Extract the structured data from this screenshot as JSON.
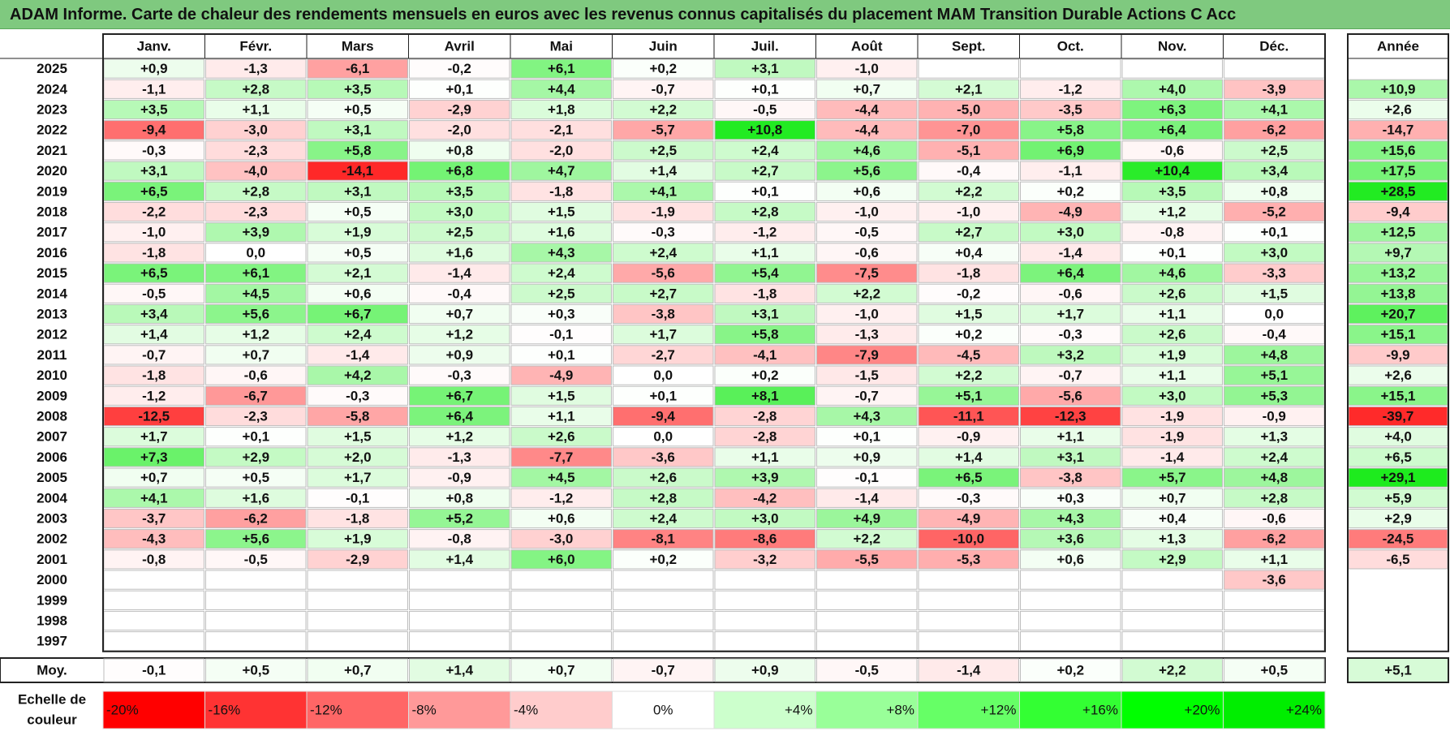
{
  "title": "ADAM Informe. Carte de chaleur des rendements mensuels en euros avec les revenus connus capitalisés du placement MAM Transition Durable Actions C Acc",
  "chart_data": {
    "type": "heatmap",
    "columns": [
      "Janv.",
      "Févr.",
      "Mars",
      "Avril",
      "Mai",
      "Juin",
      "Juil.",
      "Août",
      "Sept.",
      "Oct.",
      "Nov.",
      "Déc."
    ],
    "year_column": "Année",
    "rows": [
      {
        "year": "2025",
        "months": [
          "+0,9",
          "-1,3",
          "-6,1",
          "-0,2",
          "+6,1",
          "+0,2",
          "+3,1",
          "-1,0",
          "",
          "",
          "",
          ""
        ],
        "annual": ""
      },
      {
        "year": "2024",
        "months": [
          "-1,1",
          "+2,8",
          "+3,5",
          "+0,1",
          "+4,4",
          "-0,7",
          "+0,1",
          "+0,7",
          "+2,1",
          "-1,2",
          "+4,0",
          "-3,9"
        ],
        "annual": "+10,9"
      },
      {
        "year": "2023",
        "months": [
          "+3,5",
          "+1,1",
          "+0,5",
          "-2,9",
          "+1,8",
          "+2,2",
          "-0,5",
          "-4,4",
          "-5,0",
          "-3,5",
          "+6,3",
          "+4,1"
        ],
        "annual": "+2,6"
      },
      {
        "year": "2022",
        "months": [
          "-9,4",
          "-3,0",
          "+3,1",
          "-2,0",
          "-2,1",
          "-5,7",
          "+10,8",
          "-4,4",
          "-7,0",
          "+5,8",
          "+6,4",
          "-6,2"
        ],
        "annual": "-14,7"
      },
      {
        "year": "2021",
        "months": [
          "-0,3",
          "-2,3",
          "+5,8",
          "+0,8",
          "-2,0",
          "+2,5",
          "+2,4",
          "+4,6",
          "-5,1",
          "+6,9",
          "-0,6",
          "+2,5"
        ],
        "annual": "+15,6"
      },
      {
        "year": "2020",
        "months": [
          "+3,1",
          "-4,0",
          "-14,1",
          "+6,8",
          "+4,7",
          "+1,4",
          "+2,7",
          "+5,6",
          "-0,4",
          "-1,1",
          "+10,4",
          "+3,4"
        ],
        "annual": "+17,5"
      },
      {
        "year": "2019",
        "months": [
          "+6,5",
          "+2,8",
          "+3,1",
          "+3,5",
          "-1,8",
          "+4,1",
          "+0,1",
          "+0,6",
          "+2,2",
          "+0,2",
          "+3,5",
          "+0,8"
        ],
        "annual": "+28,5"
      },
      {
        "year": "2018",
        "months": [
          "-2,2",
          "-2,3",
          "+0,5",
          "+3,0",
          "+1,5",
          "-1,9",
          "+2,8",
          "-1,0",
          "-1,0",
          "-4,9",
          "+1,2",
          "-5,2"
        ],
        "annual": "-9,4"
      },
      {
        "year": "2017",
        "months": [
          "-1,0",
          "+3,9",
          "+1,9",
          "+2,5",
          "+1,6",
          "-0,3",
          "-1,2",
          "-0,5",
          "+2,7",
          "+3,0",
          "-0,8",
          "+0,1"
        ],
        "annual": "+12,5"
      },
      {
        "year": "2016",
        "months": [
          "-1,8",
          "0,0",
          "+0,5",
          "+1,6",
          "+4,3",
          "+2,4",
          "+1,1",
          "-0,6",
          "+0,4",
          "-1,4",
          "+0,1",
          "+3,0"
        ],
        "annual": "+9,7"
      },
      {
        "year": "2015",
        "months": [
          "+6,5",
          "+6,1",
          "+2,1",
          "-1,4",
          "+2,4",
          "-5,6",
          "+5,4",
          "-7,5",
          "-1,8",
          "+6,4",
          "+4,6",
          "-3,3"
        ],
        "annual": "+13,2"
      },
      {
        "year": "2014",
        "months": [
          "-0,5",
          "+4,5",
          "+0,6",
          "-0,4",
          "+2,5",
          "+2,7",
          "-1,8",
          "+2,2",
          "-0,2",
          "-0,6",
          "+2,6",
          "+1,5"
        ],
        "annual": "+13,8"
      },
      {
        "year": "2013",
        "months": [
          "+3,4",
          "+5,6",
          "+6,7",
          "+0,7",
          "+0,3",
          "-3,8",
          "+3,1",
          "-1,0",
          "+1,5",
          "+1,7",
          "+1,1",
          "0,0"
        ],
        "annual": "+20,7"
      },
      {
        "year": "2012",
        "months": [
          "+1,4",
          "+1,2",
          "+2,4",
          "+1,2",
          "-0,1",
          "+1,7",
          "+5,8",
          "-1,3",
          "+0,2",
          "-0,3",
          "+2,6",
          "-0,4"
        ],
        "annual": "+15,1"
      },
      {
        "year": "2011",
        "months": [
          "-0,7",
          "+0,7",
          "-1,4",
          "+0,9",
          "+0,1",
          "-2,7",
          "-4,1",
          "-7,9",
          "-4,5",
          "+3,2",
          "+1,9",
          "+4,8"
        ],
        "annual": "-9,9"
      },
      {
        "year": "2010",
        "months": [
          "-1,8",
          "-0,6",
          "+4,2",
          "-0,3",
          "-4,9",
          "0,0",
          "+0,2",
          "-1,5",
          "+2,2",
          "-0,7",
          "+1,1",
          "+5,1"
        ],
        "annual": "+2,6"
      },
      {
        "year": "2009",
        "months": [
          "-1,2",
          "-6,7",
          "-0,3",
          "+6,7",
          "+1,5",
          "+0,1",
          "+8,1",
          "-0,7",
          "+5,1",
          "-5,6",
          "+3,0",
          "+5,3"
        ],
        "annual": "+15,1"
      },
      {
        "year": "2008",
        "months": [
          "-12,5",
          "-2,3",
          "-5,8",
          "+6,4",
          "+1,1",
          "-9,4",
          "-2,8",
          "+4,3",
          "-11,1",
          "-12,3",
          "-1,9",
          "-0,9"
        ],
        "annual": "-39,7"
      },
      {
        "year": "2007",
        "months": [
          "+1,7",
          "+0,1",
          "+1,5",
          "+1,2",
          "+2,6",
          "0,0",
          "-2,8",
          "+0,1",
          "-0,9",
          "+1,1",
          "-1,9",
          "+1,3"
        ],
        "annual": "+4,0"
      },
      {
        "year": "2006",
        "months": [
          "+7,3",
          "+2,9",
          "+2,0",
          "-1,3",
          "-7,7",
          "-3,6",
          "+1,1",
          "+0,9",
          "+1,4",
          "+3,1",
          "-1,4",
          "+2,4"
        ],
        "annual": "+6,5"
      },
      {
        "year": "2005",
        "months": [
          "+0,7",
          "+0,5",
          "+1,7",
          "-0,9",
          "+4,5",
          "+2,6",
          "+3,9",
          "-0,1",
          "+6,5",
          "-3,8",
          "+5,7",
          "+4,8"
        ],
        "annual": "+29,1"
      },
      {
        "year": "2004",
        "months": [
          "+4,1",
          "+1,6",
          "-0,1",
          "+0,8",
          "-1,2",
          "+2,8",
          "-4,2",
          "-1,4",
          "-0,3",
          "+0,3",
          "+0,7",
          "+2,8"
        ],
        "annual": "+5,9"
      },
      {
        "year": "2003",
        "months": [
          "-3,7",
          "-6,2",
          "-1,8",
          "+5,2",
          "+0,6",
          "+2,4",
          "+3,0",
          "+4,9",
          "-4,9",
          "+4,3",
          "+0,4",
          "-0,6"
        ],
        "annual": "+2,9"
      },
      {
        "year": "2002",
        "months": [
          "-4,3",
          "+5,6",
          "+1,9",
          "-0,8",
          "-3,0",
          "-8,1",
          "-8,6",
          "+2,2",
          "-10,0",
          "+3,6",
          "+1,3",
          "-6,2"
        ],
        "annual": "-24,5"
      },
      {
        "year": "2001",
        "months": [
          "-0,8",
          "-0,5",
          "-2,9",
          "+1,4",
          "+6,0",
          "+0,2",
          "-3,2",
          "-5,5",
          "-5,3",
          "+0,6",
          "+2,9",
          "+1,1"
        ],
        "annual": "-6,5"
      },
      {
        "year": "2000",
        "months": [
          "",
          "",
          "",
          "",
          "",
          "",
          "",
          "",
          "",
          "",
          "",
          "-3,6"
        ],
        "annual": ""
      },
      {
        "year": "1999",
        "months": [
          "",
          "",
          "",
          "",
          "",
          "",
          "",
          "",
          "",
          "",
          "",
          ""
        ],
        "annual": ""
      },
      {
        "year": "1998",
        "months": [
          "",
          "",
          "",
          "",
          "",
          "",
          "",
          "",
          "",
          "",
          "",
          ""
        ],
        "annual": ""
      },
      {
        "year": "1997",
        "months": [
          "",
          "",
          "",
          "",
          "",
          "",
          "",
          "",
          "",
          "",
          "",
          ""
        ],
        "annual": ""
      }
    ],
    "average": {
      "label": "Moy.",
      "months": [
        "-0,1",
        "+0,5",
        "+0,7",
        "+1,4",
        "+0,7",
        "-0,7",
        "+0,9",
        "-0,5",
        "-1,4",
        "+0,2",
        "+2,2",
        "+0,5"
      ],
      "annual": "+5,1"
    },
    "color_scale": {
      "label": "Echelle de couleur",
      "stops": [
        {
          "label": "-20%",
          "value": -20,
          "color": "#ff0000"
        },
        {
          "label": "-16%",
          "value": -16,
          "color": "#ff3333"
        },
        {
          "label": "-12%",
          "value": -12,
          "color": "#ff6666"
        },
        {
          "label": "-8%",
          "value": -8,
          "color": "#ff9999"
        },
        {
          "label": "-4%",
          "value": -4,
          "color": "#ffcccc"
        },
        {
          "label": "0%",
          "value": 0,
          "color": "#ffffff"
        },
        {
          "label": "+4%",
          "value": 4,
          "color": "#ccffcc"
        },
        {
          "label": "+8%",
          "value": 8,
          "color": "#99ff99"
        },
        {
          "label": "+12%",
          "value": 12,
          "color": "#66ff66"
        },
        {
          "label": "+16%",
          "value": 16,
          "color": "#33ff33"
        },
        {
          "label": "+20%",
          "value": 20,
          "color": "#00ff00"
        },
        {
          "label": "+24%",
          "value": 24,
          "color": "#00ee00"
        }
      ]
    }
  }
}
